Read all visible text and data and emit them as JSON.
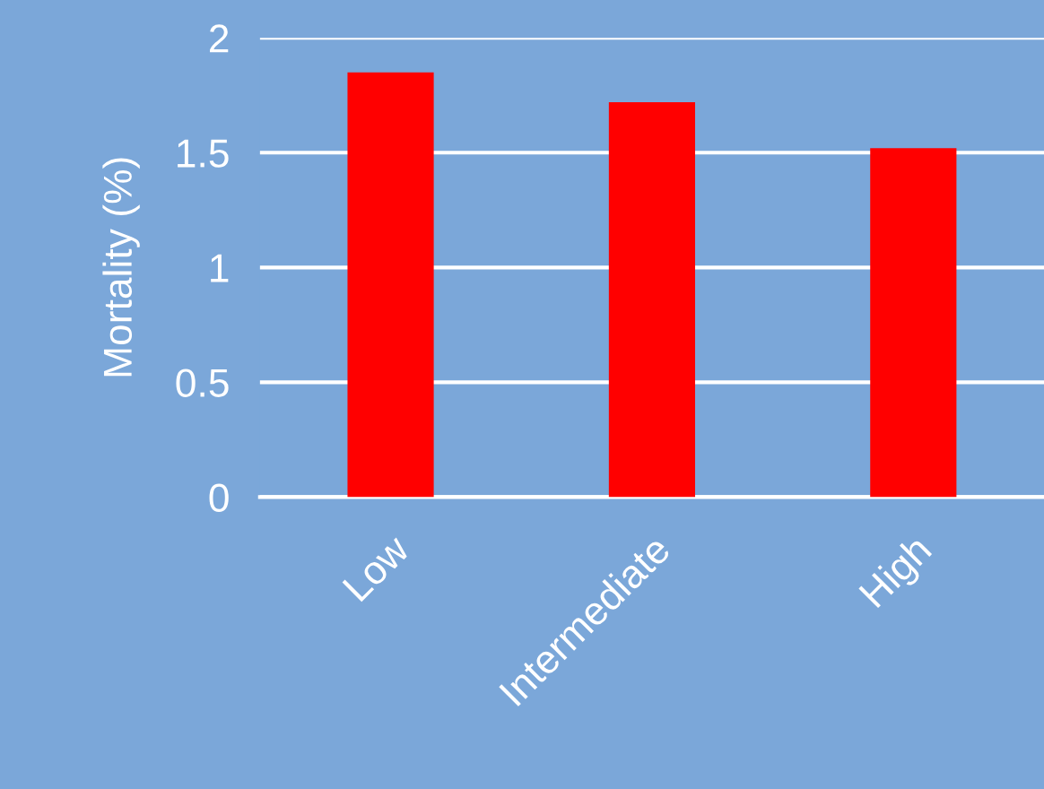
{
  "chart_data": {
    "type": "bar",
    "ylabel": "Mortality (%)",
    "categories": [
      "Low",
      "Intermediate",
      "High"
    ],
    "values": [
      1.85,
      1.72,
      1.52
    ],
    "color": "#ff0000",
    "ylim": [
      0,
      2
    ],
    "yticks": [
      0,
      0.5,
      1,
      1.5,
      2
    ],
    "grid": "y"
  }
}
